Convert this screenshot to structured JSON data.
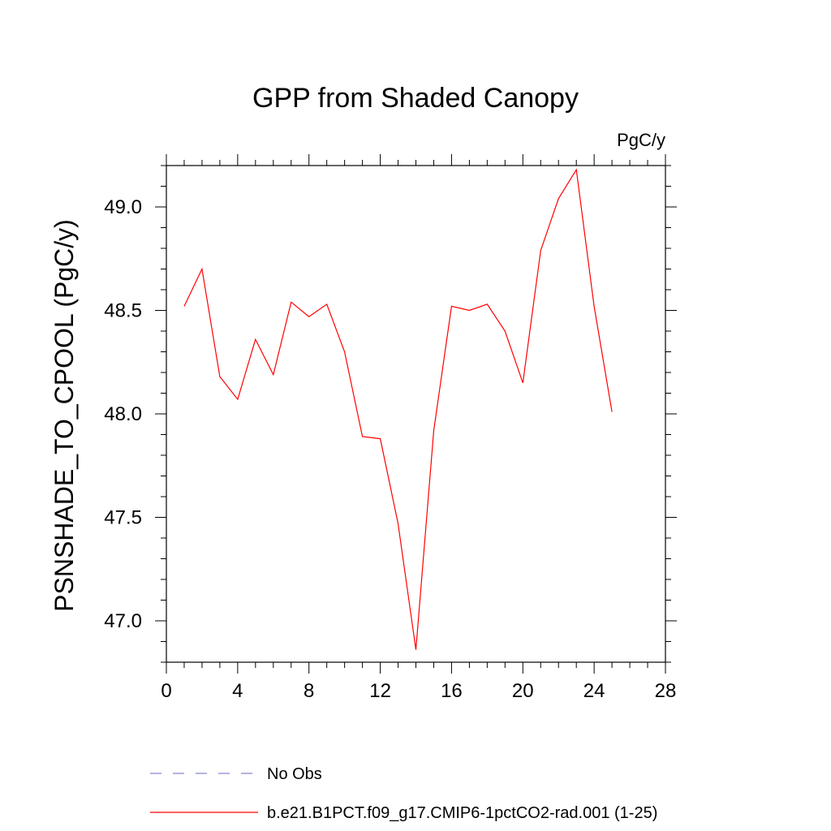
{
  "chart_data": {
    "type": "line",
    "title": "GPP from Shaded Canopy",
    "units_label": "PgC/y",
    "xlabel": "",
    "ylabel": "PSNSHADE_TO_CPOOL  (PgC/y)",
    "xlim": [
      0,
      28
    ],
    "ylim": [
      46.8,
      49.2
    ],
    "x_ticks": [
      "0",
      "4",
      "8",
      "12",
      "16",
      "20",
      "24",
      "28"
    ],
    "y_ticks": [
      "47.0",
      "47.5",
      "48.0",
      "48.5",
      "49.0"
    ],
    "grid": false,
    "legend_position": "bottom",
    "series": [
      {
        "name": "No Obs",
        "color": "#8888cc",
        "style": "dashed",
        "x": [],
        "values": []
      },
      {
        "name": "b.e21.B1PCT.f09_g17.CMIP6-1pctCO2-rad.001 (1-25)",
        "color": "#ff0000",
        "style": "solid",
        "x": [
          1,
          2,
          3,
          4,
          5,
          6,
          7,
          8,
          9,
          10,
          11,
          12,
          13,
          14,
          15,
          16,
          17,
          18,
          19,
          20,
          21,
          22,
          23,
          24,
          25
        ],
        "values": [
          48.52,
          48.7,
          48.18,
          48.07,
          48.36,
          48.19,
          48.54,
          48.47,
          48.53,
          48.3,
          47.89,
          47.88,
          47.47,
          46.86,
          47.92,
          48.52,
          48.5,
          48.53,
          48.4,
          48.15,
          48.79,
          49.04,
          49.18,
          48.52,
          48.01
        ]
      }
    ]
  }
}
